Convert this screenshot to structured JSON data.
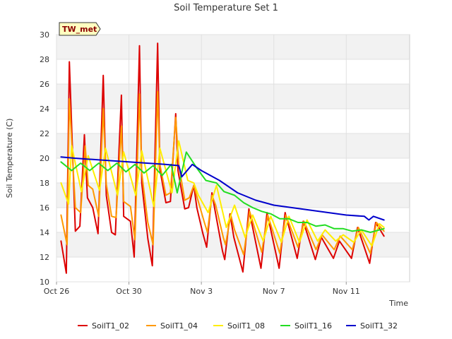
{
  "chart_data": {
    "type": "line",
    "title": "Soil Temperature Set 1",
    "xlabel": "Time",
    "ylabel": "Soil Temperature (C)",
    "badge": "TW_met",
    "x_start": "2023-10-26",
    "x_end": "2023-11-14",
    "xlim": [
      "2023-10-26",
      "2023-11-14T12:00"
    ],
    "ylim": [
      10,
      30
    ],
    "yticks": [
      10,
      12,
      14,
      16,
      18,
      20,
      22,
      24,
      26,
      28,
      30
    ],
    "xticks": [
      "Oct 26",
      "Oct 30",
      "Nov 3",
      "Nov 7",
      "Nov 11"
    ],
    "xtick_dates": [
      "2023-10-26",
      "2023-10-30",
      "2023-11-03",
      "2023-11-07",
      "2023-11-11"
    ],
    "grid": true,
    "legend_position": "bottom",
    "series": [
      {
        "name": "SoilT1_02",
        "color": "#dd0000",
        "x": [
          "2023-10-26T06:00",
          "2023-10-26T13:00",
          "2023-10-26T17:00",
          "2023-10-27T01:00",
          "2023-10-27T07:00",
          "2023-10-27T13:00",
          "2023-10-27T17:00",
          "2023-10-28T00:00",
          "2023-10-28T07:00",
          "2023-10-28T14:00",
          "2023-10-28T18:00",
          "2023-10-29T01:00",
          "2023-10-29T06:00",
          "2023-10-29T14:00",
          "2023-10-29T17:00",
          "2023-10-30T02:00",
          "2023-10-30T07:00",
          "2023-10-30T14:00",
          "2023-10-30T17:00",
          "2023-10-31T01:00",
          "2023-10-31T07:00",
          "2023-10-31T14:00",
          "2023-10-31T17:00",
          "2023-11-01T01:00",
          "2023-11-01T07:00",
          "2023-11-01T14:00",
          "2023-11-01T17:00",
          "2023-11-02T02:00",
          "2023-11-02T07:00",
          "2023-11-02T14:00",
          "2023-11-02T18:00",
          "2023-11-03T02:00",
          "2023-11-03T07:00",
          "2023-11-03T14:00",
          "2023-11-03T18:00",
          "2023-11-04T04:00",
          "2023-11-04T07:00",
          "2023-11-04T14:00",
          "2023-11-04T19:00",
          "2023-11-05T07:00",
          "2023-11-05T15:00",
          "2023-11-06T07:00",
          "2023-11-06T15:00",
          "2023-11-07T07:00",
          "2023-11-07T15:00",
          "2023-11-08T07:00",
          "2023-11-08T15:00",
          "2023-11-09T07:00",
          "2023-11-09T15:00",
          "2023-11-10T07:00",
          "2023-11-10T15:00",
          "2023-11-11T07:00",
          "2023-11-11T15:00",
          "2023-11-12T07:00",
          "2023-11-12T15:00",
          "2023-11-13T02:00"
        ],
        "values": [
          13.3,
          10.7,
          27.8,
          14.1,
          14.5,
          21.9,
          16.8,
          16.0,
          13.9,
          26.7,
          17.0,
          14.0,
          13.8,
          25.1,
          15.3,
          14.9,
          12.0,
          29.1,
          18.0,
          13.5,
          11.3,
          29.3,
          19.1,
          16.4,
          16.5,
          23.6,
          19.0,
          15.9,
          16.0,
          17.8,
          16.0,
          13.9,
          12.8,
          17.2,
          15.8,
          12.5,
          11.8,
          15.5,
          13.6,
          10.8,
          15.9,
          11.1,
          15.6,
          11.1,
          15.6,
          11.9,
          14.9,
          11.8,
          13.6,
          11.9,
          13.3,
          11.9,
          14.4,
          11.5,
          14.8,
          13.7
        ]
      },
      {
        "name": "SoilT1_04",
        "color": "#ff9900",
        "x": [
          "2023-10-26T06:00",
          "2023-10-26T14:00",
          "2023-10-26T17:00",
          "2023-10-27T01:00",
          "2023-10-27T08:00",
          "2023-10-27T14:00",
          "2023-10-27T18:00",
          "2023-10-28T00:00",
          "2023-10-28T08:00",
          "2023-10-28T14:00",
          "2023-10-28T18:00",
          "2023-10-29T01:00",
          "2023-10-29T07:00",
          "2023-10-29T14:00",
          "2023-10-29T17:00",
          "2023-10-30T02:00",
          "2023-10-30T08:00",
          "2023-10-30T14:00",
          "2023-10-30T17:00",
          "2023-10-31T01:00",
          "2023-10-31T08:00",
          "2023-10-31T14:00",
          "2023-10-31T17:00",
          "2023-11-01T01:00",
          "2023-11-01T07:00",
          "2023-11-01T14:00",
          "2023-11-01T18:00",
          "2023-11-02T02:00",
          "2023-11-02T08:00",
          "2023-11-02T14:00",
          "2023-11-02T19:00",
          "2023-11-03T04:00",
          "2023-11-03T08:00",
          "2023-11-03T14:00",
          "2023-11-03T19:00",
          "2023-11-04T05:00",
          "2023-11-04T08:00",
          "2023-11-04T15:00",
          "2023-11-04T20:00",
          "2023-11-05T08:00",
          "2023-11-05T16:00",
          "2023-11-06T08:00",
          "2023-11-06T16:00",
          "2023-11-07T08:00",
          "2023-11-07T16:00",
          "2023-11-08T08:00",
          "2023-11-08T16:00",
          "2023-11-09T08:00",
          "2023-11-09T16:00",
          "2023-11-10T08:00",
          "2023-11-10T16:00",
          "2023-11-11T08:00",
          "2023-11-11T16:00",
          "2023-11-12T08:00",
          "2023-11-12T16:00",
          "2023-11-13T02:00"
        ],
        "values": [
          15.4,
          13.0,
          24.8,
          16.0,
          15.6,
          21.0,
          17.8,
          17.5,
          15.3,
          24.0,
          17.9,
          15.3,
          15.2,
          22.6,
          16.5,
          16.1,
          13.4,
          25.2,
          18.8,
          14.8,
          13.0,
          25.4,
          19.5,
          17.0,
          17.2,
          23.3,
          19.5,
          16.6,
          16.8,
          17.8,
          16.7,
          14.8,
          14.0,
          17.0,
          16.2,
          13.6,
          13.0,
          15.4,
          14.2,
          12.2,
          15.7,
          12.4,
          15.4,
          12.3,
          15.4,
          12.8,
          14.9,
          12.6,
          13.8,
          12.6,
          13.7,
          12.6,
          14.4,
          12.3,
          14.8,
          14.1
        ]
      },
      {
        "name": "SoilT1_08",
        "color": "#ffee00",
        "x": [
          "2023-10-26T06:00",
          "2023-10-26T16:00",
          "2023-10-26T20:00",
          "2023-10-27T09:00",
          "2023-10-27T18:00",
          "2023-10-28T09:00",
          "2023-10-28T17:00",
          "2023-10-29T09:00",
          "2023-10-29T17:00",
          "2023-10-30T09:00",
          "2023-10-30T17:00",
          "2023-10-31T09:00",
          "2023-10-31T17:00",
          "2023-11-01T09:00",
          "2023-11-01T18:00",
          "2023-11-02T06:00",
          "2023-11-02T14:00",
          "2023-11-02T20:00",
          "2023-11-03T09:00",
          "2023-11-03T20:00",
          "2023-11-04T09:00",
          "2023-11-04T20:00",
          "2023-11-05T10:00",
          "2023-11-05T20:00",
          "2023-11-06T10:00",
          "2023-11-06T20:00",
          "2023-11-07T10:00",
          "2023-11-07T20:00",
          "2023-11-08T10:00",
          "2023-11-08T20:00",
          "2023-11-09T10:00",
          "2023-11-09T20:00",
          "2023-11-10T10:00",
          "2023-11-10T20:00",
          "2023-11-11T10:00",
          "2023-11-11T20:00",
          "2023-11-12T10:00",
          "2023-11-12T20:00",
          "2023-11-13T02:00"
        ],
        "values": [
          18.0,
          16.3,
          21.0,
          17.3,
          20.2,
          17.4,
          20.8,
          17.0,
          20.5,
          17.0,
          20.6,
          16.1,
          20.8,
          17.2,
          21.4,
          18.2,
          18.0,
          17.0,
          15.6,
          17.8,
          14.4,
          16.2,
          13.6,
          15.4,
          13.3,
          15.3,
          13.2,
          15.3,
          13.2,
          15.0,
          13.3,
          14.2,
          13.3,
          13.8,
          13.2,
          14.2,
          12.9,
          14.7,
          14.4
        ]
      },
      {
        "name": "SoilT1_16",
        "color": "#22dd22",
        "x": [
          "2023-10-26T06:00",
          "2023-10-26T20:00",
          "2023-10-27T08:00",
          "2023-10-27T20:00",
          "2023-10-28T08:00",
          "2023-10-28T20:00",
          "2023-10-29T08:00",
          "2023-10-29T20:00",
          "2023-10-30T08:00",
          "2023-10-30T20:00",
          "2023-10-31T08:00",
          "2023-10-31T20:00",
          "2023-11-01T08:00",
          "2023-11-01T16:00",
          "2023-11-02T04:00",
          "2023-11-02T18:00",
          "2023-11-03T06:00",
          "2023-11-03T20:00",
          "2023-11-04T06:00",
          "2023-11-04T20:00",
          "2023-11-05T08:00",
          "2023-11-05T20:00",
          "2023-11-06T08:00",
          "2023-11-06T20:00",
          "2023-11-07T08:00",
          "2023-11-07T20:00",
          "2023-11-08T08:00",
          "2023-11-08T20:00",
          "2023-11-09T08:00",
          "2023-11-09T20:00",
          "2023-11-10T08:00",
          "2023-11-10T20:00",
          "2023-11-11T08:00",
          "2023-11-11T20:00",
          "2023-11-12T08:00",
          "2023-11-12T20:00",
          "2023-11-13T02:00"
        ],
        "values": [
          19.7,
          19.0,
          19.6,
          19.0,
          19.6,
          19.0,
          19.6,
          18.9,
          19.5,
          18.8,
          19.4,
          18.6,
          19.5,
          17.2,
          20.5,
          19.2,
          18.2,
          18.0,
          17.3,
          17.0,
          16.4,
          16.0,
          15.7,
          15.5,
          15.1,
          15.1,
          14.8,
          14.8,
          14.5,
          14.6,
          14.3,
          14.3,
          14.1,
          14.2,
          14.0,
          14.2,
          14.3
        ]
      },
      {
        "name": "SoilT1_32",
        "color": "#0000cc",
        "x": [
          "2023-10-26T06:00",
          "2023-10-27T00:00",
          "2023-10-28T00:00",
          "2023-10-29T00:00",
          "2023-10-30T00:00",
          "2023-10-31T00:00",
          "2023-11-01T00:00",
          "2023-11-01T18:00",
          "2023-11-01T22:00",
          "2023-11-02T12:00",
          "2023-11-03T00:00",
          "2023-11-04T00:00",
          "2023-11-05T00:00",
          "2023-11-06T00:00",
          "2023-11-07T00:00",
          "2023-11-08T00:00",
          "2023-11-09T00:00",
          "2023-11-10T00:00",
          "2023-11-11T00:00",
          "2023-11-12T00:00",
          "2023-11-12T06:00",
          "2023-11-12T12:00",
          "2023-11-13T02:00"
        ],
        "values": [
          20.1,
          20.0,
          19.9,
          19.8,
          19.7,
          19.6,
          19.5,
          19.4,
          18.5,
          19.5,
          19.0,
          18.2,
          17.2,
          16.6,
          16.2,
          16.0,
          15.8,
          15.6,
          15.4,
          15.3,
          15.0,
          15.3,
          15.0
        ]
      }
    ]
  }
}
